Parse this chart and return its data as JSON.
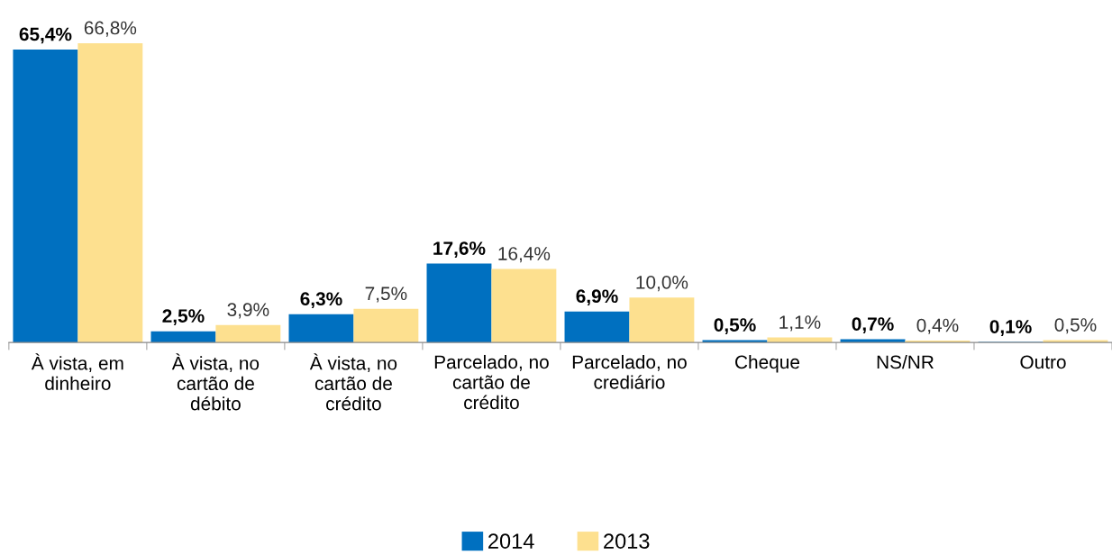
{
  "chart_data": {
    "type": "bar",
    "categories": [
      "À vista, em\ndinheiro",
      "À vista, no\ncartão de\ndébito",
      "À vista, no\ncartão de\ncrédito",
      "Parcelado, no\ncartão de\ncrédito",
      "Parcelado, no\ncrediário",
      "Cheque",
      "NS/NR",
      "Outro"
    ],
    "series": [
      {
        "name": "2014",
        "color": "#0070c0",
        "values": [
          65.4,
          2.5,
          6.3,
          17.6,
          6.9,
          0.5,
          0.7,
          0.1
        ],
        "value_labels": [
          "65,4%",
          "2,5%",
          "6,3%",
          "17,6%",
          "6,9%",
          "0,5%",
          "0,7%",
          "0,1%"
        ]
      },
      {
        "name": "2013",
        "color": "#fde08f",
        "values": [
          66.8,
          3.9,
          7.5,
          16.4,
          10.0,
          1.1,
          0.4,
          0.5
        ],
        "value_labels": [
          "66,8%",
          "3,9%",
          "7,5%",
          "16,4%",
          "10,0%",
          "1,1%",
          "0,4%",
          "0,5%"
        ]
      }
    ],
    "legend": "bottom",
    "grid": false
  }
}
